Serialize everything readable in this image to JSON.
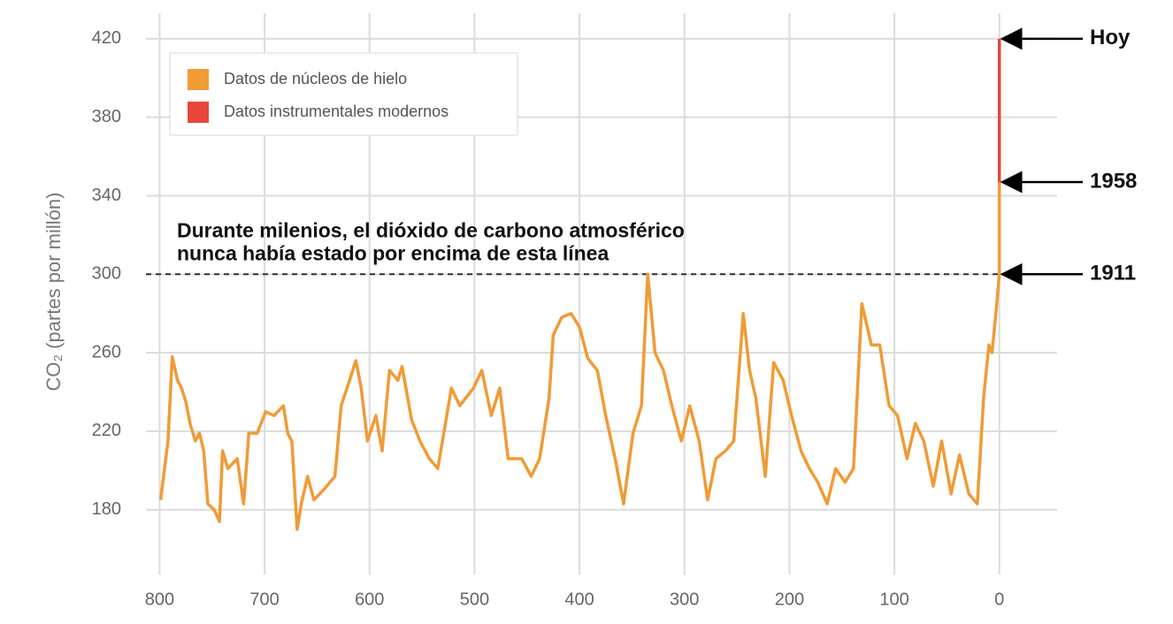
{
  "chart_data": {
    "type": "line",
    "ylabel": "CO₂ (partes por millón)",
    "xlim": [
      813,
      -55
    ],
    "ylim": [
      147,
      433
    ],
    "xticks": [
      800,
      700,
      600,
      500,
      400,
      300,
      200,
      100,
      0
    ],
    "yticks": [
      180,
      220,
      260,
      300,
      340,
      380,
      420
    ],
    "grid": true,
    "legend": "top-left",
    "series": [
      {
        "name": "Datos de núcleos de hielo",
        "color": "#f09b36",
        "x": [
          799,
          792,
          788,
          783,
          779,
          775,
          771,
          766,
          762,
          758,
          754,
          748,
          743,
          740,
          735,
          726,
          720,
          715,
          707,
          699,
          691,
          682,
          678,
          674,
          669,
          665,
          659,
          653,
          644,
          633,
          627,
          619,
          613,
          608,
          602,
          594,
          588,
          581,
          573,
          569,
          560,
          552,
          543,
          535,
          522,
          514,
          501,
          493,
          484,
          476,
          468,
          455,
          446,
          438,
          429,
          425,
          417,
          408,
          400,
          392,
          383,
          375,
          366,
          358,
          349,
          341,
          335,
          328,
          320,
          312,
          303,
          295,
          286,
          278,
          270,
          261,
          253,
          244,
          238,
          232,
          223,
          215,
          206,
          198,
          189,
          181,
          173,
          164,
          156,
          147,
          139,
          131,
          122,
          114,
          105,
          97,
          88,
          80,
          72,
          63,
          55,
          46,
          38,
          29,
          21,
          15,
          10,
          7,
          3,
          0,
          0
        ],
        "values": [
          185,
          215,
          258,
          246,
          242,
          235,
          224,
          215,
          219,
          210,
          183,
          180,
          174,
          210,
          201,
          206,
          183,
          219,
          219,
          230,
          228,
          233,
          219,
          215,
          170,
          183,
          197,
          185,
          190,
          197,
          233,
          246,
          256,
          242,
          215,
          228,
          210,
          251,
          246,
          253,
          226,
          215,
          206,
          201,
          242,
          233,
          242,
          251,
          228,
          242,
          206,
          206,
          197,
          206,
          237,
          269,
          278,
          280,
          273,
          257,
          251,
          228,
          206,
          183,
          219,
          233,
          300,
          260,
          251,
          233,
          215,
          233,
          215,
          185,
          206,
          210,
          215,
          280,
          251,
          237,
          197,
          255,
          246,
          228,
          210,
          201,
          194,
          183,
          201,
          194,
          201,
          285,
          264,
          264,
          233,
          228,
          206,
          224,
          215,
          192,
          215,
          188,
          208,
          188,
          183,
          237,
          264,
          260,
          282,
          300,
          347
        ]
      },
      {
        "name": "Datos instrumentales modernos",
        "color": "#e8463c",
        "x": [
          0,
          0
        ],
        "values": [
          347,
          420
        ]
      }
    ],
    "reference_line": {
      "value": 300,
      "label": [
        "Durante milenios, el dióxido de carbono atmosférico",
        "nunca había estado por encima de esta línea"
      ]
    },
    "annotations": [
      {
        "label": "Hoy",
        "value": 420
      },
      {
        "label": "1958",
        "value": 347
      },
      {
        "label": "1911",
        "value": 300
      }
    ]
  }
}
